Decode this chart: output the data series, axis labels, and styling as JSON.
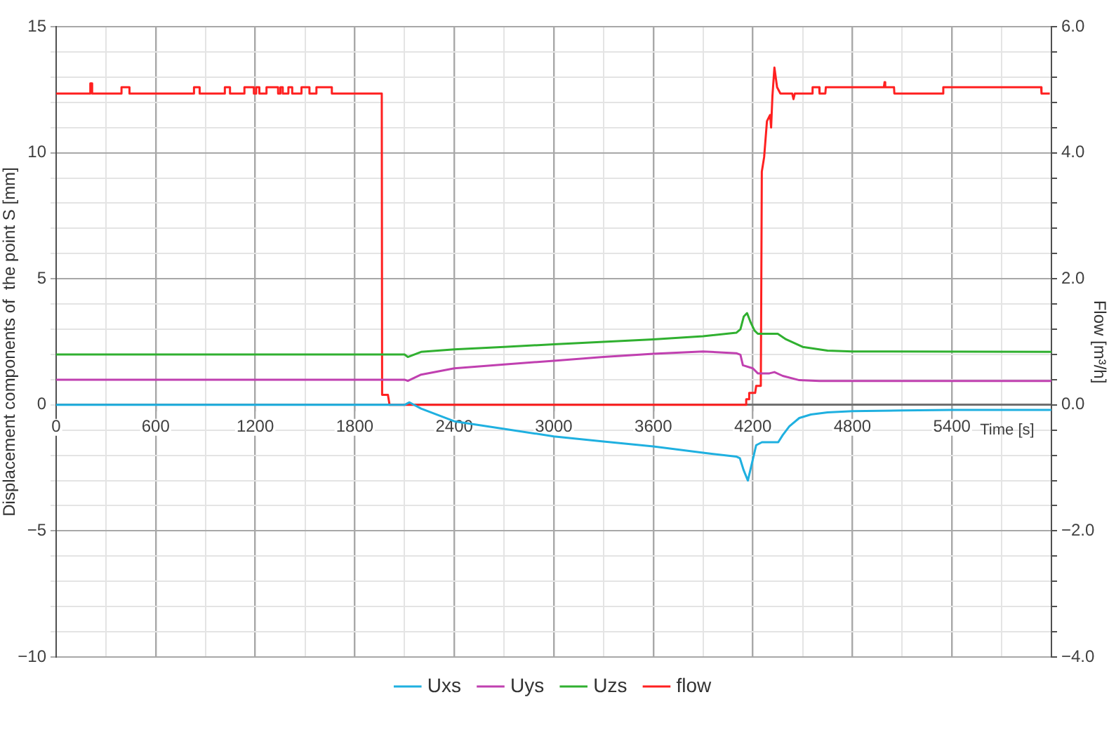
{
  "chart_data": {
    "type": "line",
    "xlabel": "Time [s]",
    "ylabel": "Displacement components of  the point S [mm]",
    "y2label": "Flow [m³/h]",
    "xlim": [
      0,
      6000
    ],
    "xticks": [
      0,
      {
        "value": 300,
        "label": null
      },
      600,
      {
        "value": 900,
        "label": null
      },
      1200,
      {
        "value": 1500,
        "label": null
      },
      1800,
      {
        "value": 2100,
        "label": null
      },
      2400,
      {
        "value": 2700,
        "label": null
      },
      3000,
      {
        "value": 3300,
        "label": null
      },
      3600,
      {
        "value": 3900,
        "label": null
      },
      4200,
      {
        "value": 4500,
        "label": null
      },
      4800,
      {
        "value": 5100,
        "label": null
      },
      5400,
      {
        "value": 5700,
        "label": null
      },
      {
        "value": 6000,
        "label": null
      }
    ],
    "ylim": [
      -10,
      15
    ],
    "yticks": [
      {
        "value": -10,
        "label": "−10"
      },
      {
        "value": -9,
        "label": null
      },
      {
        "value": -8,
        "label": null
      },
      {
        "value": -7,
        "label": null
      },
      {
        "value": -6,
        "label": null
      },
      {
        "value": -5,
        "label": "−5"
      },
      {
        "value": -4,
        "label": null
      },
      {
        "value": -3,
        "label": null
      },
      {
        "value": -2,
        "label": null
      },
      {
        "value": -1,
        "label": null
      },
      0,
      {
        "value": 1,
        "label": null
      },
      {
        "value": 2,
        "label": null
      },
      {
        "value": 3,
        "label": null
      },
      {
        "value": 4,
        "label": null
      },
      5,
      {
        "value": 6,
        "label": null
      },
      {
        "value": 7,
        "label": null
      },
      {
        "value": 8,
        "label": null
      },
      {
        "value": 9,
        "label": null
      },
      10,
      {
        "value": 11,
        "label": null
      },
      {
        "value": 12,
        "label": null
      },
      {
        "value": 13,
        "label": null
      },
      {
        "value": 14,
        "label": null
      },
      15
    ],
    "y2lim": [
      -4,
      6
    ],
    "y2ticks": [
      {
        "value": -4,
        "label": "−4.0"
      },
      {
        "value": -3.6,
        "label": null
      },
      {
        "value": -3.2,
        "label": null
      },
      {
        "value": -2.8,
        "label": null
      },
      {
        "value": -2.4,
        "label": null
      },
      {
        "value": -2,
        "label": "−2.0"
      },
      {
        "value": -1.6,
        "label": null
      },
      {
        "value": -1.2,
        "label": null
      },
      {
        "value": -0.8,
        "label": null
      },
      {
        "value": -0.4,
        "label": null
      },
      {
        "value": 0,
        "label": "0.0"
      },
      {
        "value": 0.4,
        "label": null
      },
      {
        "value": 0.8,
        "label": null
      },
      {
        "value": 1.2,
        "label": null
      },
      {
        "value": 1.6,
        "label": null
      },
      {
        "value": 2,
        "label": "2.0"
      },
      {
        "value": 2.4,
        "label": null
      },
      {
        "value": 2.8,
        "label": null
      },
      {
        "value": 3.2,
        "label": null
      },
      {
        "value": 3.6,
        "label": null
      },
      {
        "value": 4,
        "label": "4.0"
      },
      {
        "value": 4.4,
        "label": null
      },
      {
        "value": 4.8,
        "label": null
      },
      {
        "value": 5.2,
        "label": null
      },
      {
        "value": 5.6,
        "label": null
      },
      {
        "value": 6,
        "label": "6.0"
      }
    ],
    "grid": true,
    "legend": "bottom",
    "marker": "none",
    "line_style": "solid",
    "series": [
      {
        "name": "Uxs",
        "color": "#1fb0e0",
        "x": [
          0,
          600,
          1200,
          1800,
          2100,
          2130,
          2200,
          2400,
          2700,
          3000,
          3300,
          3600,
          3900,
          4100,
          4122,
          4145,
          4170,
          4195,
          4220,
          4255,
          4353,
          4380,
          4420,
          4480,
          4550,
          4650,
          4801,
          5100,
          5400,
          6000
        ],
        "values": [
          0,
          0,
          0,
          0,
          0,
          0.1,
          -0.15,
          -0.65,
          -0.95,
          -1.25,
          -1.45,
          -1.65,
          -1.9,
          -2.05,
          -2.12,
          -2.6,
          -3.0,
          -2.3,
          -1.6,
          -1.48,
          -1.48,
          -1.2,
          -0.85,
          -0.52,
          -0.38,
          -0.3,
          -0.25,
          -0.22,
          -0.2,
          -0.2
        ]
      },
      {
        "name": "Uys",
        "color": "#c040b0",
        "x": [
          0,
          1800,
          2100,
          2120,
          2200,
          2400,
          2700,
          3000,
          3300,
          3600,
          3900,
          4100,
          4125,
          4140,
          4200,
          4230,
          4300,
          4330,
          4380,
          4480,
          4600,
          6000
        ],
        "values": [
          1.0,
          1.0,
          1.0,
          0.95,
          1.2,
          1.45,
          1.6,
          1.75,
          1.9,
          2.03,
          2.12,
          2.05,
          1.99,
          1.57,
          1.45,
          1.25,
          1.25,
          1.3,
          1.15,
          0.98,
          0.95,
          0.95
        ]
      },
      {
        "name": "Uzs",
        "color": "#30b030",
        "x": [
          0,
          1800,
          2100,
          2120,
          2200,
          2400,
          2700,
          3000,
          3300,
          3600,
          3900,
          4100,
          4125,
          4145,
          4165,
          4185,
          4210,
          4230,
          4350,
          4400,
          4500,
          4650,
          4800,
          6000
        ],
        "values": [
          2.0,
          2.0,
          2.0,
          1.9,
          2.1,
          2.2,
          2.3,
          2.4,
          2.5,
          2.6,
          2.72,
          2.86,
          3.0,
          3.5,
          3.64,
          3.3,
          2.95,
          2.82,
          2.82,
          2.6,
          2.3,
          2.15,
          2.12,
          2.1
        ]
      },
      {
        "name": "flow",
        "color": "#ff2020",
        "axis": "y2",
        "x": [
          0,
          206,
          206,
          217,
          217,
          394,
          394,
          442,
          442,
          831,
          831,
          865,
          865,
          1017,
          1017,
          1048,
          1048,
          1135,
          1135,
          1192,
          1192,
          1206,
          1206,
          1225,
          1225,
          1268,
          1268,
          1338,
          1338,
          1352,
          1352,
          1366,
          1366,
          1400,
          1400,
          1423,
          1423,
          1479,
          1479,
          1527,
          1527,
          1569,
          1569,
          1662,
          1662,
          1963,
          1965,
          2000,
          2010,
          4158,
          4160,
          4175,
          4178,
          4214,
          4220,
          4248,
          4254,
          4268,
          4285,
          4304,
          4310,
          4318,
          4330,
          4346,
          4366,
          4437,
          4445,
          4453,
          4558,
          4560,
          4600,
          4602,
          4637,
          4640,
          4990,
          4994,
          4998,
          5051,
          5053,
          5346,
          5348,
          5938,
          5940,
          5990
        ],
        "values": [
          4.94,
          4.94,
          5.1,
          5.1,
          4.94,
          4.94,
          5.04,
          5.04,
          4.94,
          4.94,
          5.04,
          5.04,
          4.94,
          4.94,
          5.04,
          5.04,
          4.94,
          4.94,
          5.04,
          5.04,
          4.94,
          4.94,
          5.04,
          5.04,
          4.94,
          4.94,
          5.04,
          5.04,
          4.94,
          4.94,
          5.04,
          5.04,
          4.94,
          4.94,
          5.04,
          5.04,
          4.94,
          4.94,
          5.04,
          5.04,
          4.94,
          4.94,
          5.04,
          5.04,
          4.94,
          4.94,
          0.16,
          0.16,
          0,
          0,
          0.09,
          0.09,
          0.19,
          0.19,
          0.3,
          0.3,
          3.7,
          3.93,
          4.5,
          4.6,
          4.4,
          4.9,
          5.35,
          5.04,
          4.94,
          4.94,
          4.85,
          4.94,
          4.94,
          5.04,
          5.04,
          4.94,
          4.94,
          5.04,
          5.04,
          5.12,
          5.04,
          5.04,
          4.94,
          4.94,
          5.04,
          5.04,
          4.94,
          4.94
        ]
      }
    ]
  }
}
